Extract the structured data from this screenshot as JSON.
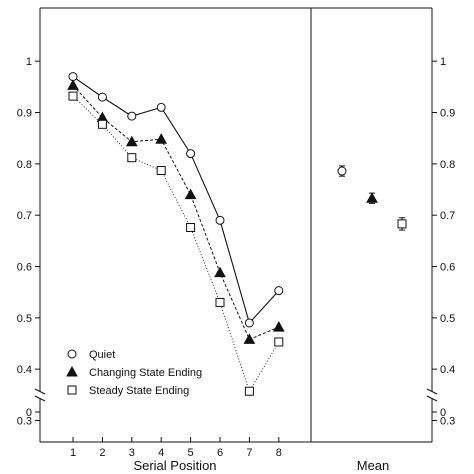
{
  "chart_data": {
    "type": "line",
    "x": [
      1,
      2,
      3,
      4,
      5,
      6,
      7,
      8
    ],
    "xlabel": "Serial Position",
    "mean_label": "Mean",
    "ylim": [
      0,
      1
    ],
    "yticks_left": [
      "1",
      "0.9",
      "0.8",
      "0.7",
      "0.6",
      "0.5",
      "0.4",
      "0.3",
      "0"
    ],
    "yticks_right": [
      "1",
      "0.9",
      "0.8",
      "0.7",
      "0.6",
      "0.5",
      "0.4",
      "0.3",
      "0"
    ],
    "axis_break": true,
    "legend_position": "bottom-left",
    "series": [
      {
        "name": "Quiet",
        "marker": "circle-open",
        "line": "solid",
        "values": [
          0.97,
          0.93,
          0.893,
          0.91,
          0.82,
          0.69,
          0.49,
          0.553
        ],
        "mean": 0.786,
        "mean_error": 0.01
      },
      {
        "name": "Changing State Ending",
        "marker": "triangle-filled",
        "line": "dashed",
        "values": [
          0.953,
          0.89,
          0.843,
          0.848,
          0.74,
          0.588,
          0.458,
          0.482
        ],
        "mean": 0.733,
        "mean_error": 0.01
      },
      {
        "name": "Steady State Ending",
        "marker": "square-open",
        "line": "dotted",
        "values": [
          0.932,
          0.877,
          0.812,
          0.787,
          0.676,
          0.53,
          0.357,
          0.453
        ],
        "mean": 0.683,
        "mean_error": 0.012
      }
    ]
  }
}
